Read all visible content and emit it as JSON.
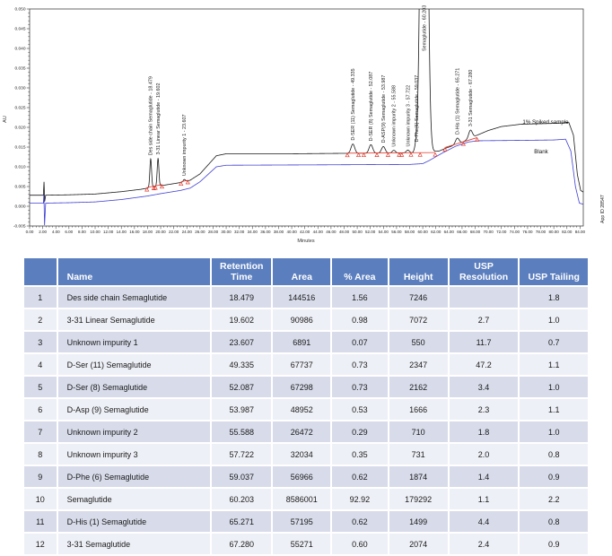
{
  "chart_data": {
    "type": "line",
    "xlabel": "Minutes",
    "ylabel": "AU",
    "xlim": [
      0,
      84.5
    ],
    "ylim": [
      -0.005,
      0.05
    ],
    "x_tick_step": 2,
    "y_tick_step": 0.005,
    "grid": false,
    "legend_position": "right-inline",
    "app_id": "App ID 28547",
    "colors": {
      "spiked": "#1a1a1a",
      "blank": "#3f3fd3",
      "integration": "#e23b2e",
      "frame": "#444444"
    },
    "series": [
      {
        "name": "1% Spiked sample",
        "color": "#1a1a1a",
        "has_peaks": true,
        "baseline": [
          [
            0,
            0.0028
          ],
          [
            2.1,
            0.0028
          ],
          [
            2.2,
            0.0062
          ],
          [
            2.3,
            0.0012
          ],
          [
            2.45,
            0.0028
          ],
          [
            6,
            0.0029
          ],
          [
            10,
            0.0031
          ],
          [
            14,
            0.0037
          ],
          [
            17,
            0.0043
          ],
          [
            18,
            0.0046
          ],
          [
            20,
            0.0052
          ],
          [
            23,
            0.006
          ],
          [
            24.5,
            0.0066
          ],
          [
            26,
            0.0082
          ],
          [
            28.5,
            0.0128
          ],
          [
            30,
            0.0133
          ],
          [
            40,
            0.0133
          ],
          [
            47,
            0.0134
          ],
          [
            59,
            0.0135
          ],
          [
            62.5,
            0.014
          ],
          [
            63.5,
            0.0147
          ],
          [
            66,
            0.0162
          ],
          [
            68,
            0.0178
          ],
          [
            70,
            0.0192
          ],
          [
            72,
            0.0202
          ],
          [
            75,
            0.0208
          ],
          [
            80,
            0.021
          ],
          [
            82.3,
            0.0212
          ],
          [
            83.0,
            0.018
          ],
          [
            83.6,
            0.008
          ],
          [
            84.1,
            0.004
          ],
          [
            84.5,
            0.0036
          ]
        ]
      },
      {
        "name": "Blank",
        "color": "#3f3fd3",
        "has_peaks": false,
        "baseline": [
          [
            0,
            0.0008
          ],
          [
            2.1,
            0.0008
          ],
          [
            2.18,
            0.003
          ],
          [
            2.28,
            -0.0048
          ],
          [
            2.45,
            0.0008
          ],
          [
            6,
            0.0009
          ],
          [
            10,
            0.0011
          ],
          [
            14,
            0.0017
          ],
          [
            18,
            0.0026
          ],
          [
            20,
            0.0032
          ],
          [
            23,
            0.004
          ],
          [
            24.5,
            0.0046
          ],
          [
            26,
            0.0062
          ],
          [
            28.5,
            0.01
          ],
          [
            30,
            0.0104
          ],
          [
            45,
            0.0105
          ],
          [
            58,
            0.0106
          ],
          [
            60,
            0.0108
          ],
          [
            61,
            0.0116
          ],
          [
            63,
            0.0135
          ],
          [
            65,
            0.0152
          ],
          [
            67,
            0.0163
          ],
          [
            68.5,
            0.0166
          ],
          [
            75,
            0.0167
          ],
          [
            80,
            0.0168
          ],
          [
            81.8,
            0.017
          ],
          [
            82.6,
            0.014
          ],
          [
            83.3,
            0.005
          ],
          [
            83.9,
            0.0008
          ],
          [
            84.5,
            0.0005
          ]
        ]
      }
    ],
    "peaks": [
      {
        "label": "Des side chain Semaglutide - 18.479",
        "rt": 18.479,
        "height": 0.00725,
        "sigma": 0.13
      },
      {
        "label": "3-31 Linear Semaglutide - 19.602",
        "rt": 19.602,
        "height": 0.00707,
        "sigma": 0.13
      },
      {
        "label": "Unknown impurity 1 - 23.607",
        "rt": 23.607,
        "height": 0.00055,
        "sigma": 0.16
      },
      {
        "label": "D-SER (11) Semaglutide - 49.335",
        "rt": 49.335,
        "height": 0.00235,
        "sigma": 0.28
      },
      {
        "label": "D-SER (8) Semaglutide - 52.087",
        "rt": 52.087,
        "height": 0.00216,
        "sigma": 0.28
      },
      {
        "label": "D-ASP(9) Semaglutide - 53.987",
        "rt": 53.987,
        "height": 0.00167,
        "sigma": 0.28
      },
      {
        "label": "Unknown impurity 2 - 55.588",
        "rt": 55.588,
        "height": 0.00071,
        "sigma": 0.25
      },
      {
        "label": "Unknown impurity 3 - 57.722",
        "rt": 57.722,
        "height": 0.00073,
        "sigma": 0.25
      },
      {
        "label": "D-Phe(6) Semaglutide - 59.037",
        "rt": 59.037,
        "height": 0.00187,
        "sigma": 0.25
      },
      {
        "label": "Semaglutide - 60.203",
        "rt": 60.203,
        "height": 0.1793,
        "sigma": 0.42
      },
      {
        "label": "D-His (1) Semaglutide - 65.271",
        "rt": 65.271,
        "height": 0.0015,
        "sigma": 0.28
      },
      {
        "label": "3-31 Semaglutide - 67.280",
        "rt": 67.28,
        "height": 0.00207,
        "sigma": 0.28
      }
    ],
    "integration": {
      "color": "#e23b2e",
      "segments": [
        [
          [
            17.9,
            0.00475
          ],
          [
            20.2,
            0.0055
          ]
        ],
        [
          [
            23.1,
            0.0062
          ],
          [
            24.15,
            0.0066
          ]
        ],
        [
          [
            48.4,
            0.01345
          ],
          [
            61.9,
            0.0136
          ]
        ],
        [
          [
            63.4,
            0.0149
          ],
          [
            68.3,
            0.0174
          ]
        ]
      ],
      "markers": [
        17.9,
        18.95,
        19.2,
        20.2,
        23.1,
        24.15,
        48.5,
        50.2,
        51.0,
        53.0,
        54.7,
        56.4,
        56.8,
        58.2,
        59.6,
        61.9,
        63.4,
        66.2,
        68.3
      ]
    }
  },
  "table": {
    "columns": [
      "",
      "Name",
      "Retention Time",
      "Area",
      "% Area",
      "Height",
      "USP Resolution",
      "USP Tailing"
    ],
    "rows": [
      [
        "1",
        "Des side chain Semaglutide",
        "18.479",
        "144516",
        "1.56",
        "7246",
        "",
        "1.8"
      ],
      [
        "2",
        "3-31 Linear Semaglutide",
        "19.602",
        "90986",
        "0.98",
        "7072",
        "2.7",
        "1.0"
      ],
      [
        "3",
        "Unknown impurity 1",
        "23.607",
        "6891",
        "0.07",
        "550",
        "11.7",
        "0.7"
      ],
      [
        "4",
        "D-Ser (11) Semaglutide",
        "49.335",
        "67737",
        "0.73",
        "2347",
        "47.2",
        "1.1"
      ],
      [
        "5",
        "D-Ser (8) Semaglutide",
        "52.087",
        "67298",
        "0.73",
        "2162",
        "3.4",
        "1.0"
      ],
      [
        "6",
        "D-Asp (9) Semaglutide",
        "53.987",
        "48952",
        "0.53",
        "1666",
        "2.3",
        "1.1"
      ],
      [
        "7",
        "Unknown impurity 2",
        "55.588",
        "26472",
        "0.29",
        "710",
        "1.8",
        "1.0"
      ],
      [
        "8",
        "Unknown impurity 3",
        "57.722",
        "32034",
        "0.35",
        "731",
        "2.0",
        "0.8"
      ],
      [
        "9",
        "D-Phe (6) Semaglutide",
        "59.037",
        "56966",
        "0.62",
        "1874",
        "1.4",
        "0.9"
      ],
      [
        "10",
        "Semaglutide",
        "60.203",
        "8586001",
        "92.92",
        "179292",
        "1.1",
        "2.2"
      ],
      [
        "11",
        "D-His (1) Semaglutide",
        "65.271",
        "57195",
        "0.62",
        "1499",
        "4.4",
        "0.8"
      ],
      [
        "12",
        "3-31 Semaglutide",
        "67.280",
        "55271",
        "0.60",
        "2074",
        "2.4",
        "0.9"
      ]
    ],
    "header_bg": "#5b7ebe",
    "row_odd_bg": "#d8dcea",
    "row_even_bg": "#eef0f7"
  }
}
